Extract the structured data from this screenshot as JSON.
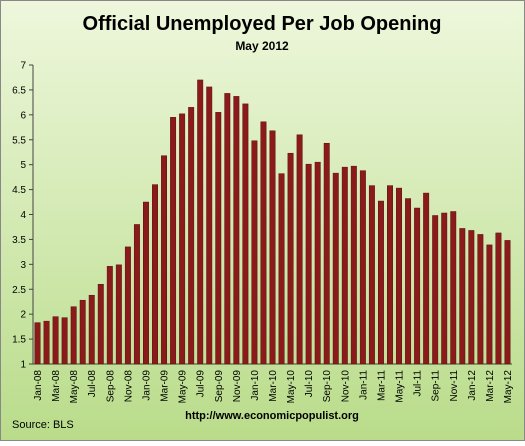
{
  "chart_data": {
    "type": "bar",
    "title": "Official Unemployed Per Job Opening",
    "subtitle": "May 2012",
    "source": "Source:  BLS",
    "url": "http://www.economicpopulist.org",
    "categories": [
      "Jan-08",
      null,
      "Mar-08",
      null,
      "May-08",
      null,
      "Jul-08",
      null,
      "Sep-08",
      null,
      "Nov-08",
      null,
      "Jan-09",
      null,
      "Mar-09",
      null,
      "May-09",
      null,
      "Jul-09",
      null,
      "Sep-09",
      null,
      "Nov-09",
      null,
      "Jan-10",
      null,
      "Mar-10",
      null,
      "May-10",
      null,
      "Jul-10",
      null,
      "Sep-10",
      null,
      "Nov-10",
      null,
      "Jan-11",
      null,
      "Mar-11",
      null,
      "May-11",
      null,
      "Jul-11",
      null,
      "Sep-11",
      null,
      "Nov-11",
      null,
      "Jan-12",
      null,
      "Mar-12",
      null,
      "May-12"
    ],
    "values": [
      1.83,
      1.86,
      1.95,
      1.93,
      2.15,
      2.28,
      2.38,
      2.6,
      2.96,
      2.99,
      3.35,
      3.8,
      4.25,
      4.6,
      5.18,
      5.95,
      6.02,
      6.15,
      6.7,
      6.56,
      6.05,
      6.43,
      6.37,
      6.22,
      5.48,
      5.86,
      5.68,
      4.82,
      5.23,
      5.6,
      5.01,
      5.05,
      5.43,
      4.83,
      4.95,
      4.97,
      4.88,
      4.58,
      4.27,
      4.58,
      4.53,
      4.32,
      4.13,
      4.43,
      3.98,
      4.03,
      4.06,
      3.72,
      3.68,
      3.6,
      3.39,
      3.63,
      3.48
    ],
    "color": "#8b1a1a",
    "ylim": [
      1,
      7
    ],
    "yticks": [
      1,
      1.5,
      2,
      2.5,
      3,
      3.5,
      4,
      4.5,
      5,
      5.5,
      6,
      6.5,
      7
    ],
    "grid": false
  }
}
